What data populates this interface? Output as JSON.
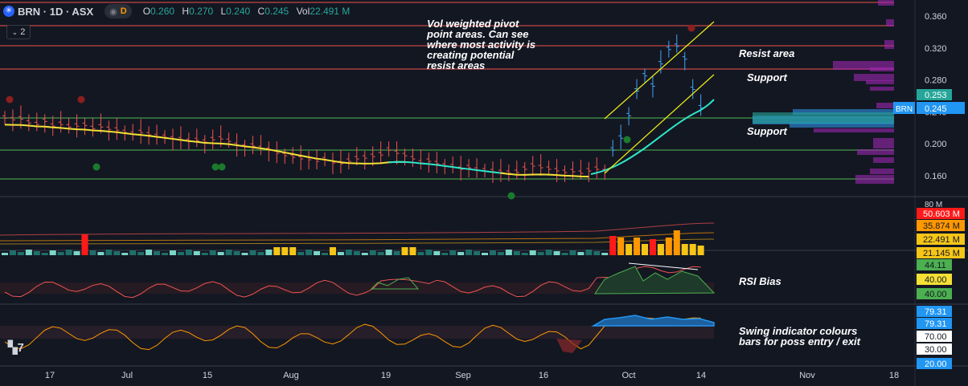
{
  "header": {
    "symbol": "BRN · 1D · ASX",
    "ohlc": {
      "o_label": "O",
      "o": "0.260",
      "h_label": "H",
      "h": "0.270",
      "l_label": "L",
      "l": "0.240",
      "c_label": "C",
      "c": "0.245",
      "vol_label": "Vol",
      "vol": "22.491 M"
    },
    "mode_badge": "D",
    "indicator_count": "2"
  },
  "annotations": {
    "pivot_note": "Vol weighted pivot\npoint areas. Can see\nwhere most activity is\ncreating potential\nresist areas",
    "resist": "Resist area",
    "support_upper": "Support",
    "support_lower": "Support",
    "rsi": "RSI Bias",
    "swing": "Swing indicator colours\nbars for poss entry / exit"
  },
  "price_axis": {
    "ticks": [
      "0.360",
      "0.320",
      "0.280",
      "0.240",
      "0.200",
      "0.160"
    ],
    "last_price": "0.245",
    "symbol_tag": "BRN",
    "avg_price": "0.253"
  },
  "volume_axis": {
    "top": "80 M",
    "labels": [
      "50.603 M",
      "35.874 M",
      "22.491 M",
      "21.145 M"
    ]
  },
  "rsi_axis": {
    "labels": [
      "44.11",
      "40.00",
      "40.00"
    ]
  },
  "swing_axis": {
    "labels": [
      "79.31",
      "79.31",
      "70.00",
      "30.00",
      "20.00"
    ]
  },
  "time_axis": {
    "labels": [
      "17",
      "Jul",
      "15",
      "Aug",
      "19",
      "Sep",
      "16",
      "Oct",
      "14",
      "Nov",
      "18"
    ]
  },
  "colors": {
    "background": "#131722",
    "up": "#26a69a",
    "down": "#ef5350",
    "ma": "#f5e035",
    "ma_recent": "#2ee6c9",
    "channel": "#e6e619",
    "resist_line": "#ef5350",
    "support_line": "#4caf50",
    "rsi_green": "#4caf50",
    "swing_blue": "#2196f3",
    "swing_orange": "#ff9800"
  }
}
